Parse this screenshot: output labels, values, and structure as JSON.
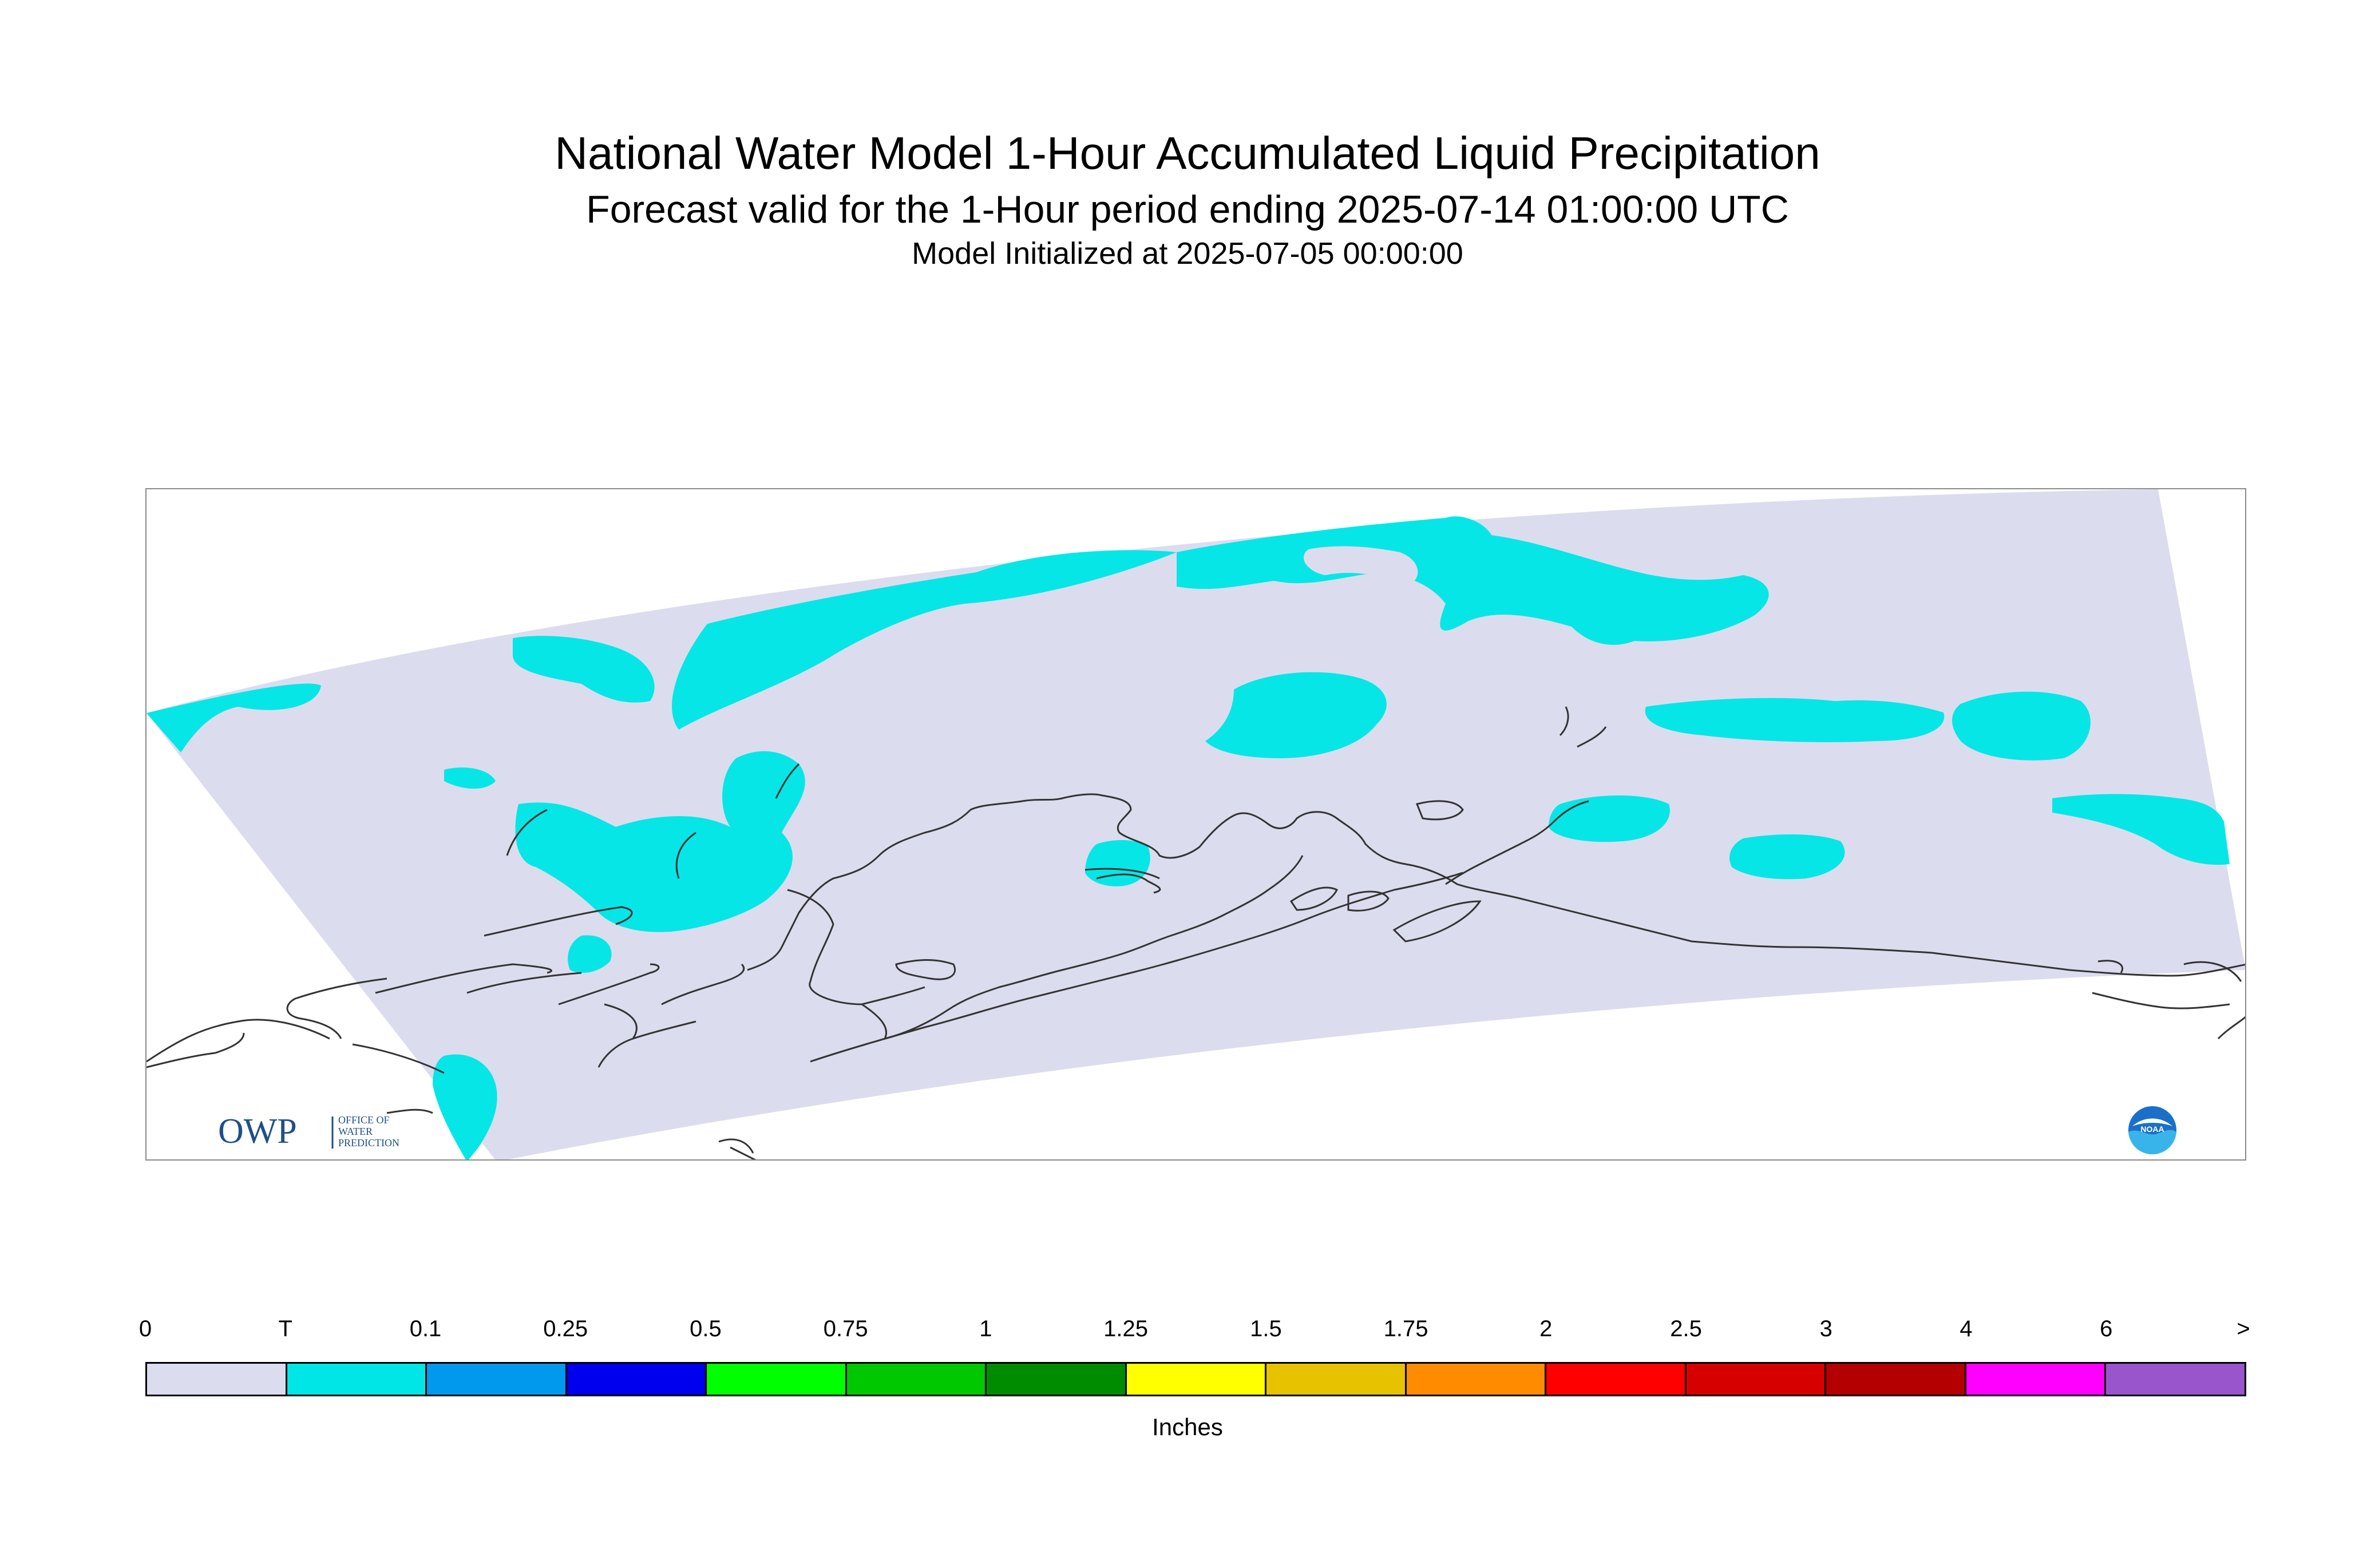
{
  "title": "National Water Model 1-Hour Accumulated Liquid Precipitation",
  "subtitle": "Forecast valid for the 1-Hour period ending 2025-07-14 01:00:00 UTC",
  "init_line": "Model Initialized at 2025-07-05 00:00:00",
  "logo_owp": {
    "mark": "OWP",
    "text_lines": [
      "OFFICE OF",
      "WATER",
      "PREDICTION"
    ]
  },
  "logo_noaa": "NOAA",
  "legend": {
    "unit": "Inches",
    "tick_labels": [
      "0",
      "T",
      "0.1",
      "0.25",
      "0.5",
      "0.75",
      "1",
      "1.25",
      "1.5",
      "1.75",
      "2",
      "2.5",
      "3",
      "4",
      "6",
      ">"
    ],
    "colors": [
      "#dcdcef",
      "#00e6e6",
      "#0099ee",
      "#0000ee",
      "#00ff00",
      "#00c800",
      "#008c00",
      "#ffff00",
      "#e6c200",
      "#ff8c00",
      "#ff0000",
      "#d70000",
      "#b40000",
      "#ff00ff",
      "#9955cc"
    ]
  },
  "map": {
    "domain_fill": "#dcdcef",
    "trace_fill": "#07e6e6",
    "coastline_color": "#333333"
  }
}
